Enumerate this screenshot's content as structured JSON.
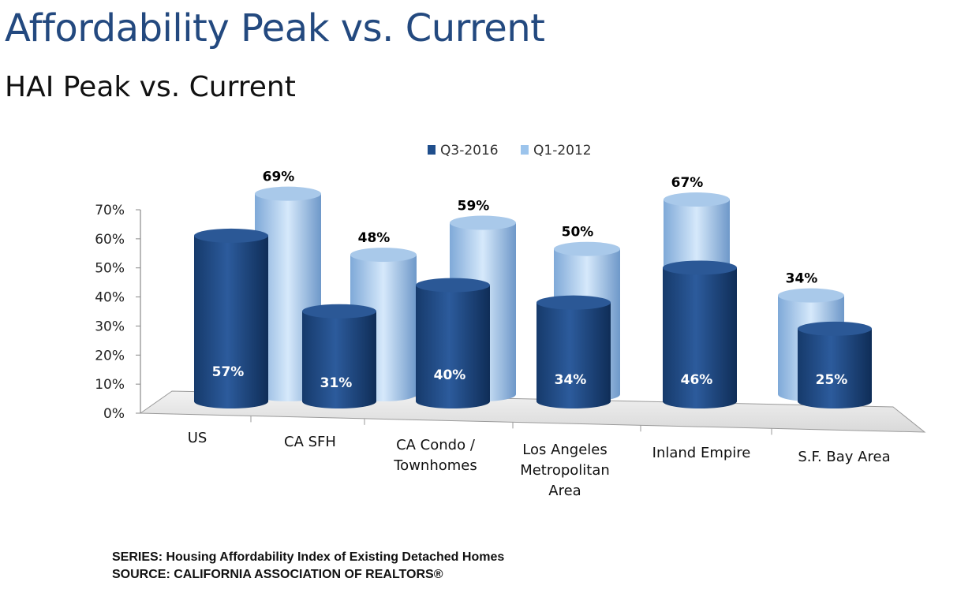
{
  "page": {
    "title": "Affordability Peak vs. Current",
    "subtitle": "HAI Peak vs. Current",
    "footer_series": "SERIES: Housing Affordability Index of Existing Detached Homes",
    "footer_source": "SOURCE:  CALIFORNIA ASSOCIATION OF REALTORS®"
  },
  "chart_data": {
    "type": "bar",
    "categories": [
      [
        "US"
      ],
      [
        "CA SFH"
      ],
      [
        "CA Condo /",
        "Townhomes"
      ],
      [
        "Los Angeles",
        "Metropolitan",
        "Area"
      ],
      [
        "Inland Empire"
      ],
      [
        "S.F. Bay Area"
      ]
    ],
    "series": [
      {
        "name": "Q3-2016",
        "values": [
          57,
          31,
          40,
          34,
          46,
          25
        ],
        "labels": [
          "57%",
          "31%",
          "40%",
          "34%",
          "46%",
          "25%"
        ],
        "color": "#1f4e8c"
      },
      {
        "name": "Q1-2012",
        "values": [
          69,
          48,
          59,
          50,
          67,
          34
        ],
        "labels": [
          "69%",
          "48%",
          "59%",
          "50%",
          "67%",
          "34%"
        ],
        "color": "#9cc4ec"
      }
    ],
    "y_ticks": [
      "0%",
      "10%",
      "20%",
      "30%",
      "40%",
      "50%",
      "60%",
      "70%"
    ],
    "ylim": [
      0,
      70
    ],
    "legend_position": "top",
    "grid": false
  }
}
